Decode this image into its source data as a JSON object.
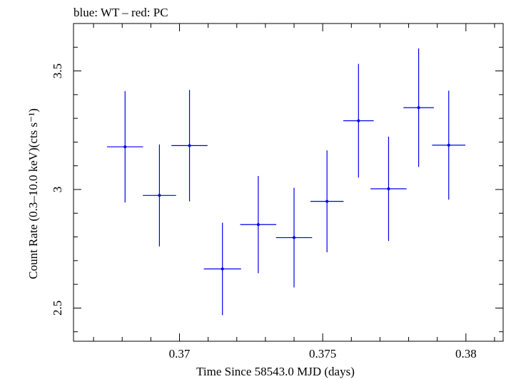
{
  "chart_data": {
    "type": "scatter",
    "title": "blue: WT – red: PC",
    "xlabel": "Time Since 58543.0 MJD (days)",
    "ylabel": "Count Rate (0.3–10.0 keV)(cts s⁻¹)",
    "xlim": [
      0.3663,
      0.3813
    ],
    "ylim": [
      2.36,
      3.7
    ],
    "x_ticks": [
      0.37,
      0.375,
      0.38
    ],
    "x_tick_labels": [
      "0.37",
      "0.375",
      "0.38"
    ],
    "y_ticks": [
      2.5,
      3,
      3.5
    ],
    "y_tick_labels": [
      "2.5",
      "3",
      "3.5"
    ],
    "grid": false,
    "series": [
      {
        "name": "WT",
        "color": "#0000ee",
        "points": [
          {
            "x": 0.3681,
            "y": 3.18,
            "xerr": 0.00063,
            "yerr": 0.235
          },
          {
            "x": 0.3693,
            "y": 2.975,
            "xerr": 0.00058,
            "yerr": 0.215
          },
          {
            "x": 0.37035,
            "y": 3.185,
            "xerr": 0.00063,
            "yerr": 0.235
          },
          {
            "x": 0.3715,
            "y": 2.665,
            "xerr": 0.00065,
            "yerr": 0.195
          },
          {
            "x": 0.37275,
            "y": 2.852,
            "xerr": 0.00063,
            "yerr": 0.205
          },
          {
            "x": 0.374,
            "y": 2.797,
            "xerr": 0.00063,
            "yerr": 0.21
          },
          {
            "x": 0.37515,
            "y": 2.95,
            "xerr": 0.00058,
            "yerr": 0.215
          },
          {
            "x": 0.37625,
            "y": 3.29,
            "xerr": 0.00053,
            "yerr": 0.24
          },
          {
            "x": 0.3773,
            "y": 3.003,
            "xerr": 0.00063,
            "yerr": 0.22
          },
          {
            "x": 0.37835,
            "y": 3.345,
            "xerr": 0.00053,
            "yerr": 0.25
          },
          {
            "x": 0.3794,
            "y": 3.187,
            "xerr": 0.00058,
            "yerr": 0.23
          }
        ]
      }
    ]
  }
}
